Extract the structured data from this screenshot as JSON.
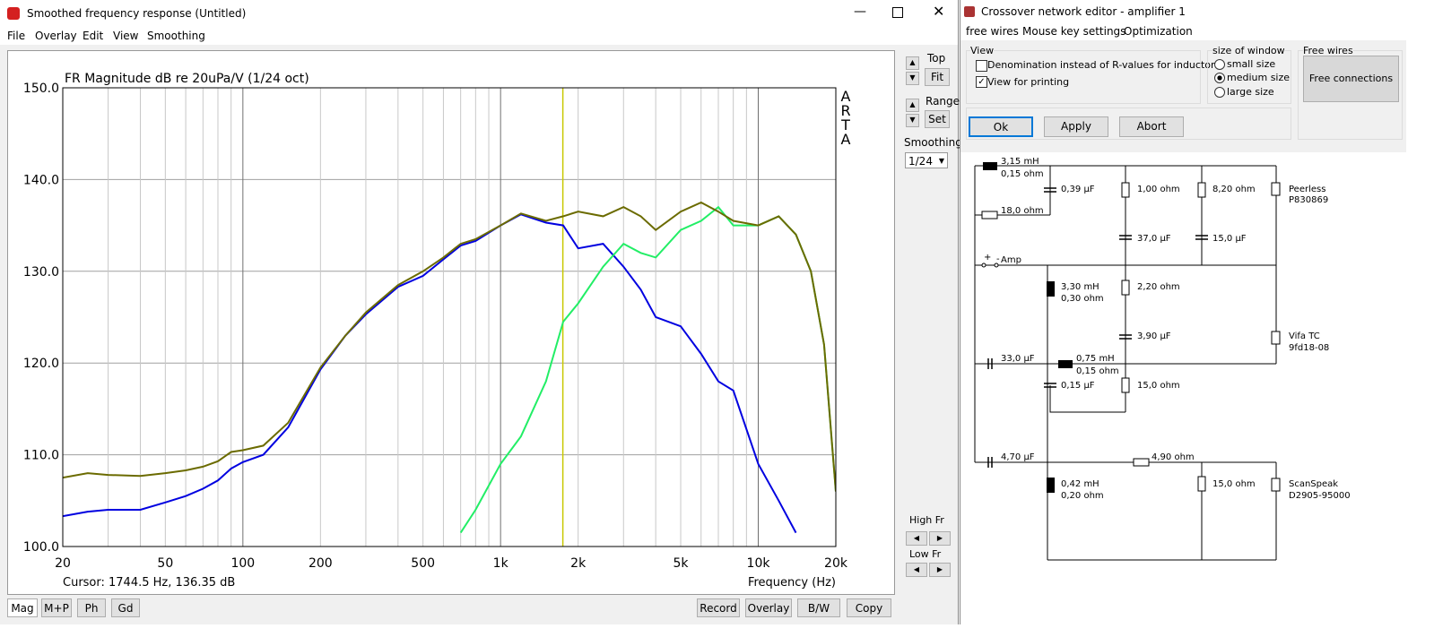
{
  "left_window": {
    "title": "Smoothed frequency response (Untitled)",
    "menu": [
      "File",
      "Overlay",
      "Edit",
      "View",
      "Smoothing"
    ],
    "controls": {
      "top": "Top",
      "fit": "Fit",
      "range": "Range",
      "set": "Set",
      "smoothing": "Smoothing",
      "smoothing_value": "1/24",
      "high_fr": "High Fr",
      "low_fr": "Low Fr"
    },
    "buttons_left": [
      "Mag",
      "M+P",
      "Ph",
      "Gd"
    ],
    "buttons_right": [
      "Record",
      "Overlay",
      "B/W",
      "Copy"
    ]
  },
  "chart_data": {
    "type": "line",
    "title": "FR Magnitude dB re 20uPa/V (1/24 oct)",
    "x_label": "Frequency (Hz)",
    "watermark": [
      "A",
      "R",
      "T",
      "A"
    ],
    "cursor_label": "Cursor: 1744.5 Hz, 136.35 dB",
    "cursor_x": 1744.5,
    "cursor_color": "#c8c800",
    "log_x": true,
    "grid": true,
    "xlim": [
      20,
      20000
    ],
    "ylim": [
      100,
      150
    ],
    "xticks": [
      20,
      50,
      100,
      200,
      500,
      {
        "value": 1000,
        "label": "1k"
      },
      {
        "value": 2000,
        "label": "2k"
      },
      {
        "value": 5000,
        "label": "5k"
      },
      {
        "value": 10000,
        "label": "10k"
      },
      {
        "value": 20000,
        "label": "20k"
      }
    ],
    "xminorticks": [
      30,
      40,
      60,
      70,
      80,
      90,
      300,
      400,
      600,
      700,
      800,
      900,
      3000,
      4000,
      6000,
      7000,
      8000,
      9000
    ],
    "yticks": [
      {
        "value": 100,
        "label": "100.0"
      },
      {
        "value": 110,
        "label": "110.0"
      },
      {
        "value": 120,
        "label": "120.0"
      },
      {
        "value": 130,
        "label": "130.0"
      },
      {
        "value": 140,
        "label": "140.0"
      },
      {
        "value": 150,
        "label": "150.0"
      }
    ],
    "x": [
      20,
      25,
      30,
      40,
      50,
      60,
      70,
      80,
      90,
      100,
      120,
      150,
      200,
      250,
      300,
      400,
      500,
      600,
      700,
      800,
      1000,
      1200,
      1500,
      1750,
      2000,
      2500,
      3000,
      3500,
      4000,
      5000,
      6000,
      7000,
      8000,
      10000,
      12000,
      14000,
      16000,
      18000,
      20000
    ],
    "series": [
      {
        "color": "#0000e0",
        "values": [
          103.3,
          103.8,
          104,
          104,
          104.8,
          105.5,
          106.3,
          107.2,
          108.5,
          109.2,
          110,
          113,
          119.3,
          123,
          125.3,
          128.3,
          129.5,
          131.3,
          132.8,
          133.3,
          135,
          136.2,
          135.3,
          135,
          132.5,
          133,
          130.5,
          128,
          125,
          124,
          121,
          118,
          117,
          109,
          105,
          101.5,
          null,
          null,
          null
        ]
      },
      {
        "color": "#22ee66",
        "values": [
          null,
          null,
          null,
          null,
          null,
          null,
          null,
          null,
          null,
          null,
          null,
          null,
          null,
          null,
          null,
          null,
          null,
          null,
          101.5,
          104,
          109,
          112,
          118,
          124.5,
          126.5,
          130.5,
          133,
          132,
          131.5,
          134.5,
          135.5,
          137,
          135,
          135,
          136,
          134,
          130,
          122,
          106
        ]
      },
      {
        "color": "#6b6b00",
        "values": [
          107.5,
          108,
          107.8,
          107.7,
          108,
          108.3,
          108.7,
          109.3,
          110.3,
          110.5,
          111,
          113.5,
          119.5,
          123,
          125.5,
          128.5,
          130,
          131.5,
          133,
          133.5,
          135,
          136.3,
          135.5,
          136,
          136.5,
          136,
          137,
          136,
          134.5,
          136.5,
          137.5,
          136.5,
          135.5,
          135,
          136,
          134,
          130,
          122,
          106
        ]
      }
    ]
  },
  "right_window": {
    "title": "Crossover network editor - amplifier 1",
    "menu": [
      "free wires",
      "Mouse key settings",
      "Optimization"
    ],
    "view_group": "View",
    "check_denomination": "Denomination instead of R-values for inductors",
    "check_printing": "View for printing",
    "size_group": "size of window",
    "sizes": [
      "small size",
      "medium size",
      "large size"
    ],
    "free_group": "Free wires",
    "free_button": "Free connections",
    "buttons": [
      "Ok",
      "Apply",
      "Abort"
    ]
  },
  "schematic": {
    "labels": [
      "3,15 mH",
      "0,15 ohm",
      "0,39 µF",
      "1,00 ohm",
      "8,20 ohm",
      "Peerless",
      "P830869",
      "18,0 ohm",
      "37,0 µF",
      "15,0 µF",
      "+",
      "-",
      "Amp",
      "3,30 mH",
      "0,30 ohm",
      "2,20 ohm",
      "3,90 µF",
      "Vifa TC",
      "9fd18-08",
      "33,0 µF",
      "0,75 mH",
      "0,15 ohm",
      "0,15 µF",
      "15,0 ohm",
      "4,70 µF",
      "4,90 ohm",
      "0,42 mH",
      "0,20 ohm",
      "15,0 ohm",
      "ScanSpeak",
      "D2905-95000"
    ]
  }
}
